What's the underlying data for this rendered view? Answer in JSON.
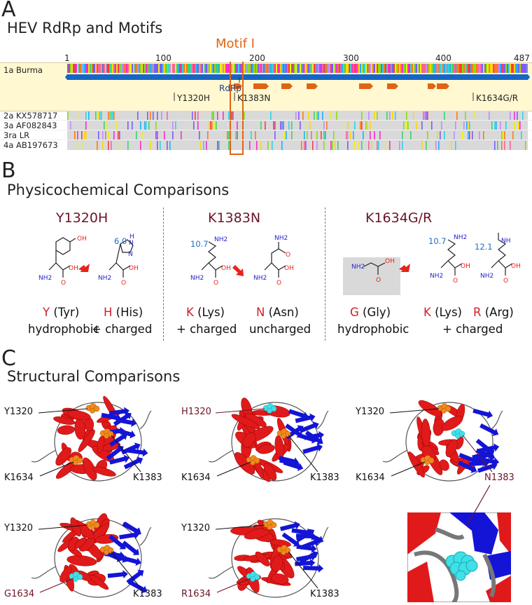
{
  "panelA": {
    "letter": "A",
    "title": "HEV RdRp and Motifs",
    "motif_label": "Motif I",
    "ruler_ticks": [
      "1",
      "100",
      "200",
      "300",
      "400",
      "487"
    ],
    "reference": {
      "name": "1a Burma",
      "domain_label": "RdRp"
    },
    "mutations": [
      "Y1320H",
      "K1383N",
      "K1634G/R"
    ],
    "sequences": [
      "2a KX578717",
      "3a AF082843",
      "3ra LR",
      "4a AB197673"
    ]
  },
  "panelB": {
    "letter": "B",
    "title": "Physicochemical Comparisons",
    "columns": [
      {
        "title": "Y1320H"
      },
      {
        "title": "K1383N"
      },
      {
        "title": "K1634G/R"
      }
    ],
    "pka": {
      "his": "6.0",
      "lys1": "10.7",
      "lys2": "10.7",
      "arg": "12.1"
    },
    "structure_atoms": {
      "nh2": "NH2",
      "oh": "OH",
      "o": "O",
      "hn": "HN",
      "nh": "NH",
      "n": "N",
      "h": "H"
    },
    "amino_acids": [
      {
        "code": "Y",
        "name": "(Tyr)"
      },
      {
        "code": "H",
        "name": "(His)"
      },
      {
        "code": "K",
        "name": "(Lys)"
      },
      {
        "code": "N",
        "name": "(Asn)"
      },
      {
        "code": "G",
        "name": "(Gly)"
      },
      {
        "code": "K",
        "name": "(Lys)"
      },
      {
        "code": "R",
        "name": "(Arg)"
      }
    ],
    "properties": {
      "hydrophobic_1": "hydrophobic",
      "charged_1": "+ charged",
      "charged_2": "+ charged",
      "uncharged": "uncharged",
      "hydrophobic_2": "hydrophobic",
      "charged_3": "+ charged"
    }
  },
  "panelC": {
    "letter": "C",
    "title": "Structural Comparisons",
    "structures": [
      {
        "top": "Y1320",
        "left": "K1634",
        "right": "K1383"
      },
      {
        "top": "H1320",
        "left": "K1634",
        "right": "K1383"
      },
      {
        "top": "Y1320",
        "left": "K1634",
        "right": "N1383"
      },
      {
        "top": "Y1320",
        "left": "G1634",
        "right": "K1383"
      },
      {
        "top": "Y1320",
        "left": "R1634",
        "right": "K1383"
      }
    ]
  },
  "colors": {
    "accent_orange": "#e06414",
    "mutant_label": "#6b1527",
    "aa_code_red": "#d0202a",
    "pka_blue": "#1f6ec7",
    "helix_red": "#e01a1a",
    "strand_blue": "#1414d6",
    "residue_orange": "#f08a1c",
    "residue_cyan": "#3fe0e8"
  }
}
